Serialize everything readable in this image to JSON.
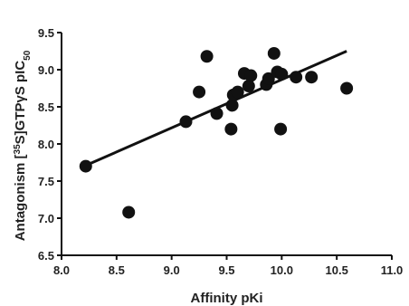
{
  "chart_data": {
    "type": "scatter",
    "xlabel": "Affinity pKi",
    "ylabel": {
      "prefix": "Antagonism [",
      "superscript": "35",
      "middle": "S]GTPγS pIC",
      "subscript": "50"
    },
    "xlim": [
      8.0,
      11.0
    ],
    "ylim": [
      6.5,
      9.5
    ],
    "xticks": [
      "8.0",
      "8.5",
      "9.0",
      "9.5",
      "10.0",
      "10.5",
      "11.0"
    ],
    "yticks": [
      "6.5",
      "7.0",
      "7.5",
      "8.0",
      "8.5",
      "9.0",
      "9.5"
    ],
    "grid": false,
    "points": [
      {
        "x": 8.22,
        "y": 7.7
      },
      {
        "x": 8.61,
        "y": 7.08
      },
      {
        "x": 9.13,
        "y": 8.3
      },
      {
        "x": 9.25,
        "y": 8.7
      },
      {
        "x": 9.32,
        "y": 9.18
      },
      {
        "x": 9.41,
        "y": 8.41
      },
      {
        "x": 9.54,
        "y": 8.2
      },
      {
        "x": 9.55,
        "y": 8.52
      },
      {
        "x": 9.56,
        "y": 8.66
      },
      {
        "x": 9.6,
        "y": 8.7
      },
      {
        "x": 9.66,
        "y": 8.95
      },
      {
        "x": 9.7,
        "y": 8.78
      },
      {
        "x": 9.72,
        "y": 8.92
      },
      {
        "x": 9.86,
        "y": 8.8
      },
      {
        "x": 9.88,
        "y": 8.88
      },
      {
        "x": 9.93,
        "y": 9.22
      },
      {
        "x": 9.96,
        "y": 8.97
      },
      {
        "x": 9.99,
        "y": 8.2
      },
      {
        "x": 10.0,
        "y": 8.94
      },
      {
        "x": 10.13,
        "y": 8.9
      },
      {
        "x": 10.27,
        "y": 8.9
      },
      {
        "x": 10.59,
        "y": 8.75
      }
    ],
    "fit_line": {
      "x": [
        8.22,
        10.59
      ],
      "y": [
        7.71,
        9.25
      ]
    }
  }
}
